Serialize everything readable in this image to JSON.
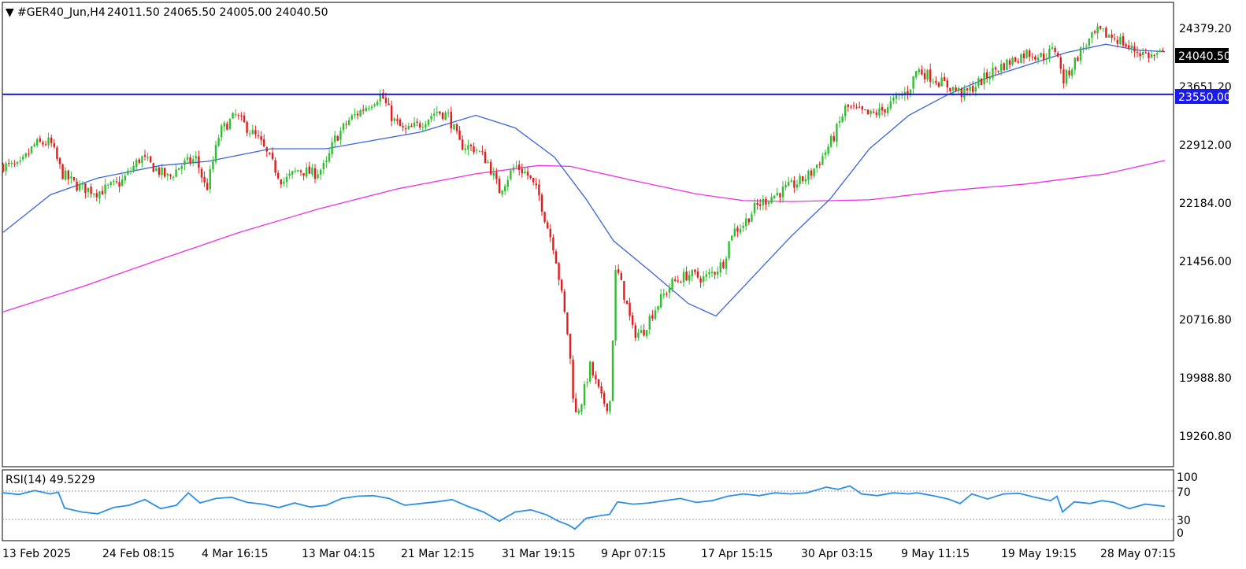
{
  "header": {
    "symbol": "#GER40_Jun,H4",
    "ohlc": "24011.50 24065.50 24005.00 24040.50"
  },
  "price_axis": {
    "labels": [
      "24379.20",
      "23651.20",
      "22912.00",
      "22184.00",
      "21456.00",
      "20716.80",
      "19988.80",
      "19260.80"
    ],
    "current_price_label": "24040.50",
    "hline_label": "23550.00"
  },
  "time_axis": {
    "labels": [
      "13 Feb 2025",
      "24 Feb 08:15",
      "4 Mar 16:15",
      "13 Mar 04:15",
      "21 Mar 12:15",
      "31 Mar 19:15",
      "9 Apr 07:15",
      "17 Apr 15:15",
      "30 Apr 03:15",
      "9 May 11:15",
      "19 May 19:15",
      "28 May 07:15"
    ]
  },
  "rsi": {
    "label": "RSI(14) 49.5229",
    "levels": [
      "100",
      "70",
      "30",
      "0"
    ]
  },
  "colors": {
    "bull": "#2fbf2f",
    "bear": "#e51c1c",
    "ma_fast": "#3b63e0",
    "ma_slow": "#ee2ee8",
    "hline": "#1a1af0",
    "rsi": "#2e8fe6",
    "current_tag_bg": "#000000",
    "hline_tag_bg": "#1a1af0"
  },
  "chart_data": {
    "type": "candlestick",
    "symbol": "#GER40_Jun",
    "timeframe": "H4",
    "ylim": [
      19100,
      24650
    ],
    "horizontal_line": 23550.0,
    "last_close": 24040.5,
    "close_path": [
      [
        0,
        22700
      ],
      [
        20,
        22680
      ],
      [
        40,
        22950
      ],
      [
        60,
        22980
      ],
      [
        75,
        22600
      ],
      [
        95,
        22450
      ],
      [
        120,
        22380
      ],
      [
        150,
        22500
      ],
      [
        175,
        22800
      ],
      [
        195,
        22650
      ],
      [
        210,
        22550
      ],
      [
        225,
        22700
      ],
      [
        245,
        22780
      ],
      [
        258,
        22400
      ],
      [
        275,
        23100
      ],
      [
        295,
        23300
      ],
      [
        310,
        23150
      ],
      [
        325,
        23000
      ],
      [
        340,
        22750
      ],
      [
        355,
        22500
      ],
      [
        375,
        22650
      ],
      [
        395,
        22600
      ],
      [
        410,
        22700
      ],
      [
        420,
        23000
      ],
      [
        440,
        23250
      ],
      [
        460,
        23400
      ],
      [
        480,
        23550
      ],
      [
        495,
        23250
      ],
      [
        510,
        23100
      ],
      [
        530,
        23200
      ],
      [
        550,
        23350
      ],
      [
        565,
        23300
      ],
      [
        580,
        22950
      ],
      [
        600,
        22900
      ],
      [
        615,
        22750
      ],
      [
        630,
        22400
      ],
      [
        650,
        22700
      ],
      [
        665,
        22600
      ],
      [
        680,
        22350
      ],
      [
        690,
        22000
      ],
      [
        700,
        21700
      ],
      [
        710,
        21100
      ],
      [
        718,
        20600
      ],
      [
        726,
        19700
      ],
      [
        735,
        19900
      ],
      [
        745,
        20300
      ],
      [
        760,
        19900
      ],
      [
        770,
        19800
      ],
      [
        778,
        21500
      ],
      [
        790,
        21100
      ],
      [
        800,
        20700
      ],
      [
        812,
        20700
      ],
      [
        822,
        20900
      ],
      [
        835,
        21100
      ],
      [
        850,
        21300
      ],
      [
        870,
        21400
      ],
      [
        890,
        21350
      ],
      [
        905,
        21450
      ],
      [
        915,
        21550
      ],
      [
        925,
        21900
      ],
      [
        940,
        22000
      ],
      [
        955,
        22200
      ],
      [
        970,
        22300
      ],
      [
        990,
        22400
      ],
      [
        1010,
        22500
      ],
      [
        1025,
        22600
      ],
      [
        1040,
        22800
      ],
      [
        1055,
        23050
      ],
      [
        1070,
        23400
      ],
      [
        1085,
        23350
      ],
      [
        1100,
        23300
      ],
      [
        1115,
        23350
      ],
      [
        1135,
        23500
      ],
      [
        1150,
        23600
      ],
      [
        1160,
        23850
      ],
      [
        1180,
        23750
      ],
      [
        1200,
        23650
      ],
      [
        1220,
        23550
      ],
      [
        1240,
        23700
      ],
      [
        1260,
        23850
      ],
      [
        1280,
        23950
      ],
      [
        1300,
        24050
      ],
      [
        1320,
        24000
      ],
      [
        1338,
        24100
      ],
      [
        1345,
        23700
      ],
      [
        1355,
        23850
      ],
      [
        1370,
        24100
      ],
      [
        1390,
        24300
      ],
      [
        1405,
        24250
      ],
      [
        1418,
        24200
      ],
      [
        1430,
        24100
      ],
      [
        1445,
        24050
      ],
      [
        1460,
        24000
      ],
      [
        1475,
        24040
      ]
    ],
    "ma_fast": [
      [
        0,
        21900
      ],
      [
        60,
        22350
      ],
      [
        120,
        22550
      ],
      [
        200,
        22700
      ],
      [
        260,
        22750
      ],
      [
        340,
        22900
      ],
      [
        410,
        22900
      ],
      [
        470,
        23000
      ],
      [
        530,
        23100
      ],
      [
        600,
        23300
      ],
      [
        650,
        23150
      ],
      [
        700,
        22800
      ],
      [
        740,
        22300
      ],
      [
        775,
        21800
      ],
      [
        820,
        21450
      ],
      [
        870,
        21050
      ],
      [
        905,
        20900
      ],
      [
        950,
        21350
      ],
      [
        1000,
        21850
      ],
      [
        1050,
        22300
      ],
      [
        1100,
        22900
      ],
      [
        1150,
        23300
      ],
      [
        1200,
        23550
      ],
      [
        1250,
        23750
      ],
      [
        1300,
        23900
      ],
      [
        1350,
        24050
      ],
      [
        1400,
        24150
      ],
      [
        1440,
        24080
      ],
      [
        1475,
        24060
      ]
    ],
    "ma_slow": [
      [
        0,
        20950
      ],
      [
        100,
        21250
      ],
      [
        200,
        21580
      ],
      [
        300,
        21900
      ],
      [
        400,
        22180
      ],
      [
        500,
        22420
      ],
      [
        600,
        22600
      ],
      [
        680,
        22700
      ],
      [
        720,
        22690
      ],
      [
        800,
        22520
      ],
      [
        880,
        22360
      ],
      [
        940,
        22280
      ],
      [
        1000,
        22270
      ],
      [
        1100,
        22290
      ],
      [
        1200,
        22400
      ],
      [
        1300,
        22480
      ],
      [
        1400,
        22600
      ],
      [
        1475,
        22760
      ]
    ],
    "rsi_path": [
      [
        0,
        72
      ],
      [
        20,
        69
      ],
      [
        40,
        76
      ],
      [
        60,
        70
      ],
      [
        70,
        73
      ],
      [
        78,
        45
      ],
      [
        100,
        38
      ],
      [
        120,
        35
      ],
      [
        140,
        46
      ],
      [
        160,
        50
      ],
      [
        180,
        60
      ],
      [
        200,
        44
      ],
      [
        220,
        50
      ],
      [
        235,
        72
      ],
      [
        250,
        54
      ],
      [
        270,
        62
      ],
      [
        290,
        64
      ],
      [
        310,
        55
      ],
      [
        330,
        52
      ],
      [
        350,
        46
      ],
      [
        370,
        54
      ],
      [
        390,
        47
      ],
      [
        410,
        50
      ],
      [
        430,
        62
      ],
      [
        450,
        66
      ],
      [
        470,
        67
      ],
      [
        490,
        62
      ],
      [
        510,
        50
      ],
      [
        530,
        53
      ],
      [
        550,
        56
      ],
      [
        570,
        60
      ],
      [
        590,
        48
      ],
      [
        610,
        38
      ],
      [
        630,
        22
      ],
      [
        650,
        38
      ],
      [
        670,
        42
      ],
      [
        690,
        33
      ],
      [
        705,
        22
      ],
      [
        718,
        15
      ],
      [
        726,
        8
      ],
      [
        740,
        27
      ],
      [
        755,
        31
      ],
      [
        770,
        34
      ],
      [
        780,
        56
      ],
      [
        800,
        52
      ],
      [
        820,
        54
      ],
      [
        840,
        58
      ],
      [
        860,
        62
      ],
      [
        880,
        55
      ],
      [
        900,
        58
      ],
      [
        920,
        66
      ],
      [
        940,
        70
      ],
      [
        960,
        67
      ],
      [
        980,
        72
      ],
      [
        1000,
        70
      ],
      [
        1020,
        72
      ],
      [
        1045,
        82
      ],
      [
        1060,
        78
      ],
      [
        1075,
        84
      ],
      [
        1090,
        70
      ],
      [
        1110,
        67
      ],
      [
        1130,
        72
      ],
      [
        1150,
        70
      ],
      [
        1160,
        72
      ],
      [
        1180,
        67
      ],
      [
        1200,
        61
      ],
      [
        1215,
        53
      ],
      [
        1230,
        70
      ],
      [
        1250,
        61
      ],
      [
        1270,
        70
      ],
      [
        1290,
        71
      ],
      [
        1310,
        64
      ],
      [
        1330,
        58
      ],
      [
        1338,
        66
      ],
      [
        1345,
        38
      ],
      [
        1360,
        56
      ],
      [
        1380,
        53
      ],
      [
        1395,
        58
      ],
      [
        1410,
        55
      ],
      [
        1430,
        44
      ],
      [
        1450,
        52
      ],
      [
        1475,
        48
      ]
    ]
  }
}
